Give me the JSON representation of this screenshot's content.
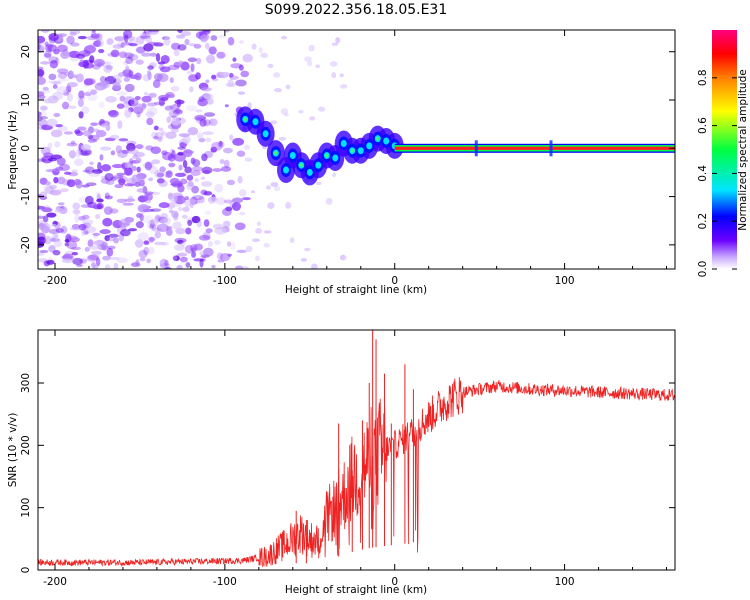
{
  "figure": {
    "title": "S099.2022.356.18.05.E31"
  },
  "chart_data": [
    {
      "type": "heatmap",
      "xlabel": "Height of straight line (km)",
      "ylabel": "Frequency (Hz)",
      "xlim": [
        -210,
        165
      ],
      "ylim": [
        -25,
        24.5
      ],
      "xticks": [
        -200,
        -100,
        0,
        100
      ],
      "yticks": [
        -20,
        -10,
        0,
        10,
        20
      ],
      "colorbar": {
        "label": "Normalized spectral amplitude",
        "range": [
          0,
          1
        ],
        "ticks": [
          0.0,
          0.2,
          0.4,
          0.6,
          0.8
        ],
        "colormap": [
          "#ffffff",
          "#c9a8ff",
          "#6a00ff",
          "#0000ff",
          "#00e5ff",
          "#00ff40",
          "#ffff00",
          "#ff7f00",
          "#ff0000",
          "#ff007f"
        ]
      },
      "features": {
        "noise_region_x": [
          -210,
          -85
        ],
        "signal_track": [
          {
            "x": -88,
            "y": 6.0
          },
          {
            "x": -82,
            "y": 5.5
          },
          {
            "x": -76,
            "y": 3.0
          },
          {
            "x": -70,
            "y": -1.0
          },
          {
            "x": -64,
            "y": -4.5
          },
          {
            "x": -60,
            "y": -1.5
          },
          {
            "x": -55,
            "y": -3.5
          },
          {
            "x": -50,
            "y": -5.0
          },
          {
            "x": -45,
            "y": -3.5
          },
          {
            "x": -40,
            "y": -1.5
          },
          {
            "x": -35,
            "y": -2.0
          },
          {
            "x": -30,
            "y": 1.0
          },
          {
            "x": -25,
            "y": -0.5
          },
          {
            "x": -20,
            "y": -0.5
          },
          {
            "x": -15,
            "y": 0.5
          },
          {
            "x": -10,
            "y": 2.0
          },
          {
            "x": -5,
            "y": 1.5
          },
          {
            "x": 0,
            "y": 0.5
          }
        ],
        "carrier_line": {
          "x_start": 0,
          "x_end": 165,
          "y": 0,
          "value": 1.0
        }
      }
    },
    {
      "type": "line",
      "xlabel": "Height of straight line (km)",
      "ylabel": "SNR (10 * v/v)",
      "xlim": [
        -210,
        165
      ],
      "ylim": [
        0,
        385
      ],
      "xticks": [
        -200,
        -100,
        0,
        100
      ],
      "yticks": [
        0,
        100,
        200,
        300
      ],
      "color": "#ee2222",
      "trend": [
        {
          "x": -210,
          "y": 12
        },
        {
          "x": -150,
          "y": 12
        },
        {
          "x": -90,
          "y": 15
        },
        {
          "x": -75,
          "y": 22
        },
        {
          "x": -65,
          "y": 40
        },
        {
          "x": -55,
          "y": 60
        },
        {
          "x": -50,
          "y": 50
        },
        {
          "x": -45,
          "y": 45
        },
        {
          "x": -40,
          "y": 85
        },
        {
          "x": -35,
          "y": 100
        },
        {
          "x": -30,
          "y": 120
        },
        {
          "x": -25,
          "y": 145
        },
        {
          "x": -20,
          "y": 160
        },
        {
          "x": -15,
          "y": 175
        },
        {
          "x": -10,
          "y": 185
        },
        {
          "x": -5,
          "y": 195
        },
        {
          "x": 0,
          "y": 200
        },
        {
          "x": 10,
          "y": 220
        },
        {
          "x": 20,
          "y": 245
        },
        {
          "x": 30,
          "y": 270
        },
        {
          "x": 40,
          "y": 285
        },
        {
          "x": 60,
          "y": 295
        },
        {
          "x": 80,
          "y": 290
        },
        {
          "x": 100,
          "y": 288
        },
        {
          "x": 120,
          "y": 285
        },
        {
          "x": 140,
          "y": 283
        },
        {
          "x": 165,
          "y": 280
        }
      ],
      "spikes": [
        {
          "x": -58,
          "y": 95
        },
        {
          "x": -52,
          "y": 80
        },
        {
          "x": -33,
          "y": 235
        },
        {
          "x": -25,
          "y": 160
        },
        {
          "x": -19,
          "y": 240
        },
        {
          "x": -15,
          "y": 300
        },
        {
          "x": -13,
          "y": 385
        },
        {
          "x": -11,
          "y": 370
        },
        {
          "x": -6,
          "y": 315
        },
        {
          "x": -2,
          "y": 235
        },
        {
          "x": 6,
          "y": 330
        },
        {
          "x": 11,
          "y": 290
        }
      ]
    }
  ]
}
